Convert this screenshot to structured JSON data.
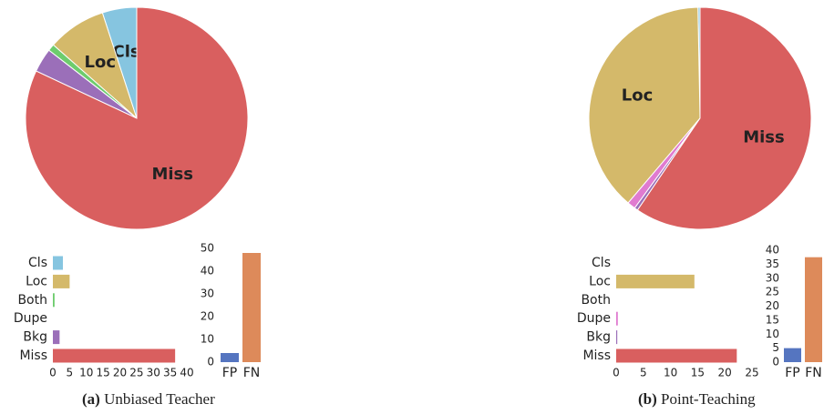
{
  "chart_data": [
    {
      "type": "pie",
      "categories": [
        "Cls",
        "Loc",
        "Both",
        "Dupe",
        "Bkg",
        "Miss"
      ],
      "values": [
        5,
        8.5,
        1,
        0,
        3.5,
        82
      ],
      "colors": [
        "#86c5e0",
        "#d4b96a",
        "#6dcc6d",
        "#e07bd0",
        "#9b6fb9",
        "#d95f5f"
      ]
    },
    {
      "type": "hbar",
      "categories": [
        "Cls",
        "Loc",
        "Both",
        "Dupe",
        "Bkg",
        "Miss"
      ],
      "values": [
        3,
        5,
        0.5,
        0,
        2,
        36.5
      ],
      "colors": [
        "#86c5e0",
        "#d4b96a",
        "#6dcc6d",
        "#e07bd0",
        "#9b6fb9",
        "#d95f5f"
      ],
      "xlim": [
        0,
        40
      ],
      "xticks": [
        0,
        5,
        10,
        15,
        20,
        25,
        30,
        35,
        40
      ]
    },
    {
      "type": "vbar",
      "categories": [
        "FP",
        "FN"
      ],
      "values": [
        4,
        48
      ],
      "colors": [
        "#5575c0",
        "#dd8a5a"
      ],
      "ylim": [
        0,
        50
      ],
      "yticks": [
        0,
        10,
        20,
        30,
        40,
        50
      ]
    },
    {
      "type": "pie",
      "categories": [
        "Cls",
        "Loc",
        "Both",
        "Dupe",
        "Bkg",
        "Miss"
      ],
      "values": [
        0.3,
        38.5,
        0,
        1.2,
        0.5,
        59.5
      ],
      "colors": [
        "#86c5e0",
        "#d4b96a",
        "#6dcc6d",
        "#e07bd0",
        "#9b6fb9",
        "#d95f5f"
      ]
    },
    {
      "type": "hbar",
      "categories": [
        "Cls",
        "Loc",
        "Both",
        "Dupe",
        "Bkg",
        "Miss"
      ],
      "values": [
        0,
        14.4,
        0,
        0.3,
        0.2,
        22.2
      ],
      "colors": [
        "#86c5e0",
        "#d4b96a",
        "#6dcc6d",
        "#e07bd0",
        "#9b6fb9",
        "#d95f5f"
      ],
      "xlim": [
        0,
        25
      ],
      "xticks": [
        0,
        5,
        10,
        15,
        20,
        25
      ]
    },
    {
      "type": "vbar",
      "categories": [
        "FP",
        "FN"
      ],
      "values": [
        5,
        37.5
      ],
      "colors": [
        "#5575c0",
        "#dd8a5a"
      ],
      "ylim": [
        0,
        40
      ],
      "yticks": [
        0,
        5,
        10,
        15,
        20,
        25,
        30,
        35,
        40
      ]
    }
  ],
  "captions": [
    {
      "label": "(a)",
      "text": "Unbiased Teacher"
    },
    {
      "label": "(b)",
      "text": "Point-Teaching"
    }
  ]
}
